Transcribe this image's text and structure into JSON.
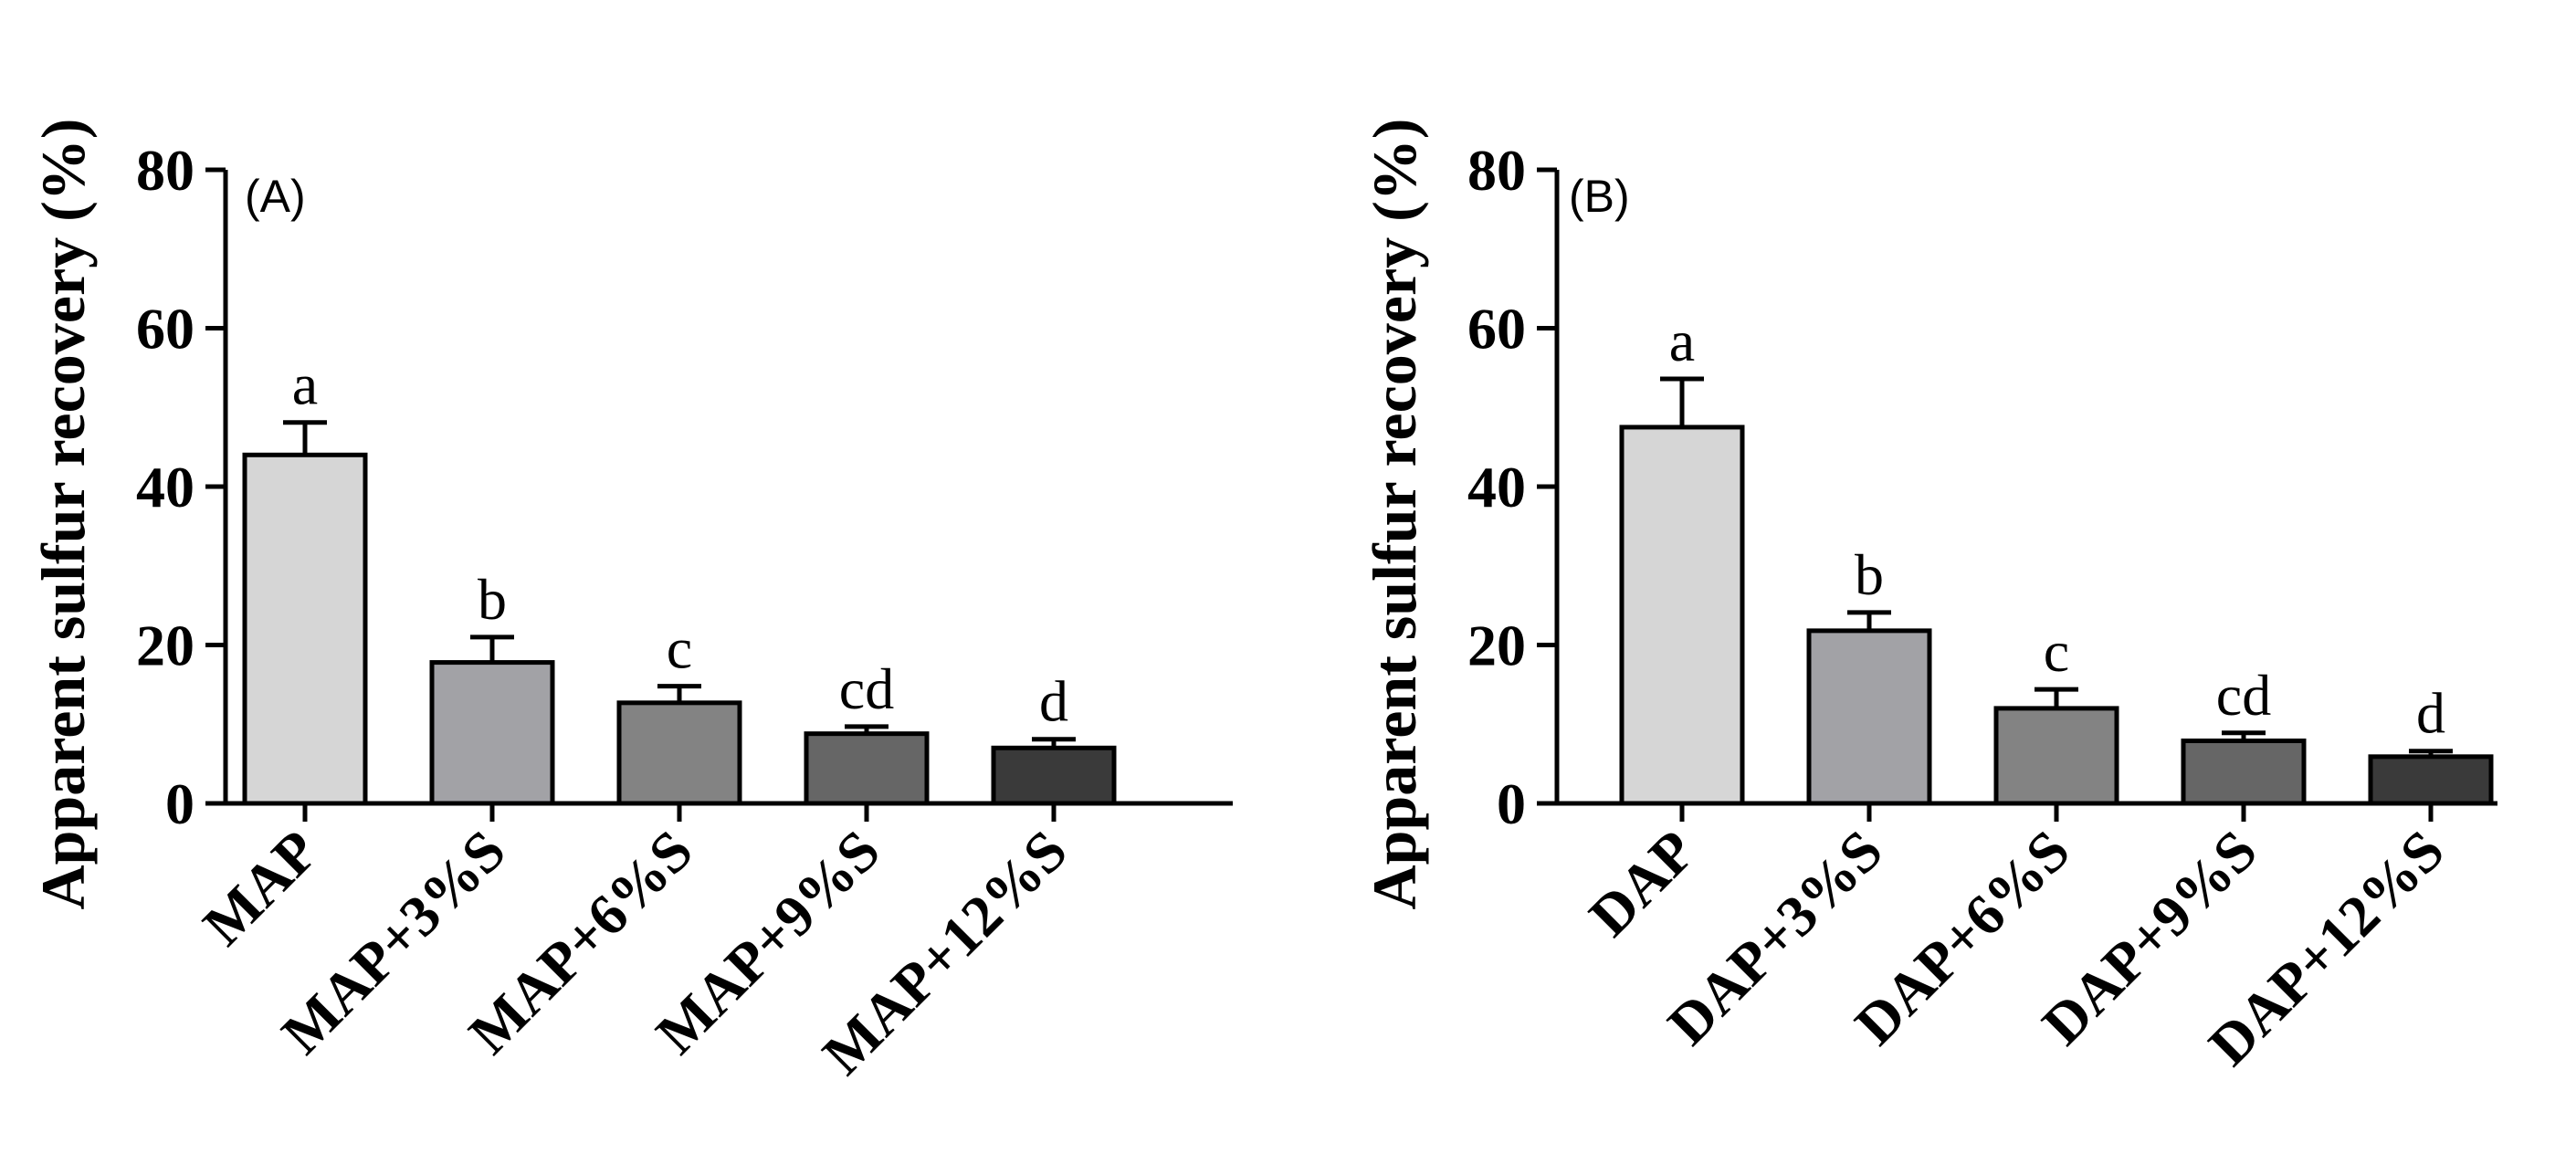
{
  "chart_data": [
    {
      "type": "bar",
      "panel_label": "(A)",
      "ylabel": "Apparent sulfur recovery (%)",
      "xlabel": "",
      "ylim": [
        0,
        80
      ],
      "yticks": [
        "0",
        "20",
        "40",
        "60",
        "80"
      ],
      "categories": [
        "MAP",
        "MAP+3%S",
        "MAP+6%S",
        "MAP+9%S",
        "MAP+12%S"
      ],
      "values": [
        44,
        17.8,
        12.7,
        8.8,
        7
      ],
      "errors": [
        4.1,
        3.2,
        2.1,
        0.9,
        1.1
      ],
      "significance": [
        "a",
        "b",
        "c",
        "cd",
        "d"
      ],
      "colors": [
        "#d6d6d6",
        "#a2a2a6",
        "#838383",
        "#666666",
        "#3a3a3a"
      ]
    },
    {
      "type": "bar",
      "panel_label": "(B)",
      "ylabel": "Apparent sulfur recovery (%)",
      "xlabel": "",
      "ylim": [
        0,
        80
      ],
      "yticks": [
        "0",
        "20",
        "40",
        "60",
        "80"
      ],
      "categories": [
        "DAP",
        "DAP+3%S",
        "DAP+6%S",
        "DAP+9%S",
        "DAP+12%S"
      ],
      "values": [
        47.5,
        21.8,
        12,
        7.9,
        5.9
      ],
      "errors": [
        6.1,
        2.3,
        2.4,
        1,
        0.7
      ],
      "significance": [
        "a",
        "b",
        "c",
        "cd",
        "d"
      ],
      "colors": [
        "#d6d6d6",
        "#a2a2a6",
        "#838383",
        "#666666",
        "#3a3a3a"
      ]
    }
  ]
}
